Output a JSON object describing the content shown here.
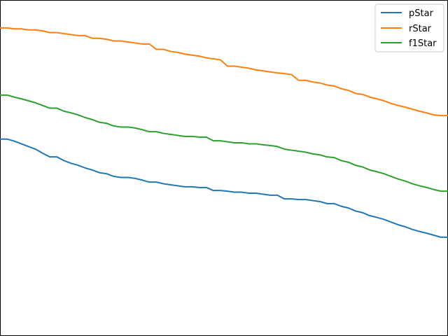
{
  "chart_data": {
    "type": "line",
    "title": "",
    "xlabel": "",
    "ylabel": "",
    "grid": false,
    "legend_position": "top-right",
    "x": [
      0,
      1,
      2,
      3,
      4,
      5,
      6,
      7,
      8,
      9,
      10,
      11,
      12,
      13,
      14,
      15,
      16,
      17,
      18,
      19,
      20,
      21,
      22,
      23,
      24,
      25,
      26,
      27,
      28,
      29,
      30,
      31,
      32,
      33,
      34,
      35,
      36,
      37,
      38,
      39,
      40,
      41,
      42,
      43,
      44,
      45,
      46,
      47,
      48,
      49,
      50,
      51,
      52,
      53,
      54,
      55,
      56,
      57,
      58,
      59,
      60,
      61,
      62,
      63
    ],
    "xlim": [
      0,
      63
    ],
    "ylim": [
      0,
      1
    ],
    "series": [
      {
        "name": "pStar",
        "color": "#1f77b4",
        "values": [
          0.586,
          0.586,
          0.58,
          0.572,
          0.564,
          0.556,
          0.544,
          0.533,
          0.533,
          0.522,
          0.514,
          0.508,
          0.5,
          0.494,
          0.486,
          0.483,
          0.475,
          0.472,
          0.472,
          0.469,
          0.464,
          0.458,
          0.458,
          0.453,
          0.45,
          0.447,
          0.444,
          0.444,
          0.442,
          0.442,
          0.433,
          0.433,
          0.431,
          0.428,
          0.428,
          0.425,
          0.425,
          0.422,
          0.419,
          0.419,
          0.408,
          0.408,
          0.406,
          0.406,
          0.403,
          0.4,
          0.394,
          0.394,
          0.386,
          0.381,
          0.372,
          0.367,
          0.358,
          0.353,
          0.347,
          0.339,
          0.331,
          0.325,
          0.317,
          0.311,
          0.306,
          0.3,
          0.294,
          0.294
        ]
      },
      {
        "name": "rStar",
        "color": "#ff7f0e",
        "values": [
          0.917,
          0.917,
          0.914,
          0.914,
          0.911,
          0.911,
          0.908,
          0.903,
          0.903,
          0.9,
          0.897,
          0.894,
          0.894,
          0.886,
          0.886,
          0.883,
          0.878,
          0.878,
          0.875,
          0.872,
          0.869,
          0.869,
          0.853,
          0.853,
          0.847,
          0.844,
          0.839,
          0.836,
          0.833,
          0.828,
          0.825,
          0.822,
          0.803,
          0.803,
          0.8,
          0.797,
          0.792,
          0.789,
          0.786,
          0.783,
          0.781,
          0.778,
          0.761,
          0.761,
          0.756,
          0.753,
          0.747,
          0.744,
          0.736,
          0.731,
          0.722,
          0.719,
          0.711,
          0.706,
          0.7,
          0.692,
          0.686,
          0.681,
          0.675,
          0.669,
          0.664,
          0.658,
          0.656,
          0.656
        ]
      },
      {
        "name": "f1Star",
        "color": "#2ca02c",
        "values": [
          0.717,
          0.717,
          0.711,
          0.706,
          0.7,
          0.694,
          0.686,
          0.678,
          0.678,
          0.669,
          0.664,
          0.658,
          0.65,
          0.644,
          0.636,
          0.633,
          0.625,
          0.622,
          0.622,
          0.619,
          0.614,
          0.608,
          0.608,
          0.603,
          0.6,
          0.597,
          0.594,
          0.594,
          0.592,
          0.592,
          0.581,
          0.581,
          0.578,
          0.575,
          0.575,
          0.572,
          0.572,
          0.569,
          0.567,
          0.564,
          0.556,
          0.553,
          0.55,
          0.547,
          0.542,
          0.539,
          0.533,
          0.531,
          0.522,
          0.517,
          0.508,
          0.503,
          0.494,
          0.489,
          0.483,
          0.475,
          0.467,
          0.461,
          0.453,
          0.447,
          0.442,
          0.436,
          0.431,
          0.431
        ]
      }
    ]
  }
}
